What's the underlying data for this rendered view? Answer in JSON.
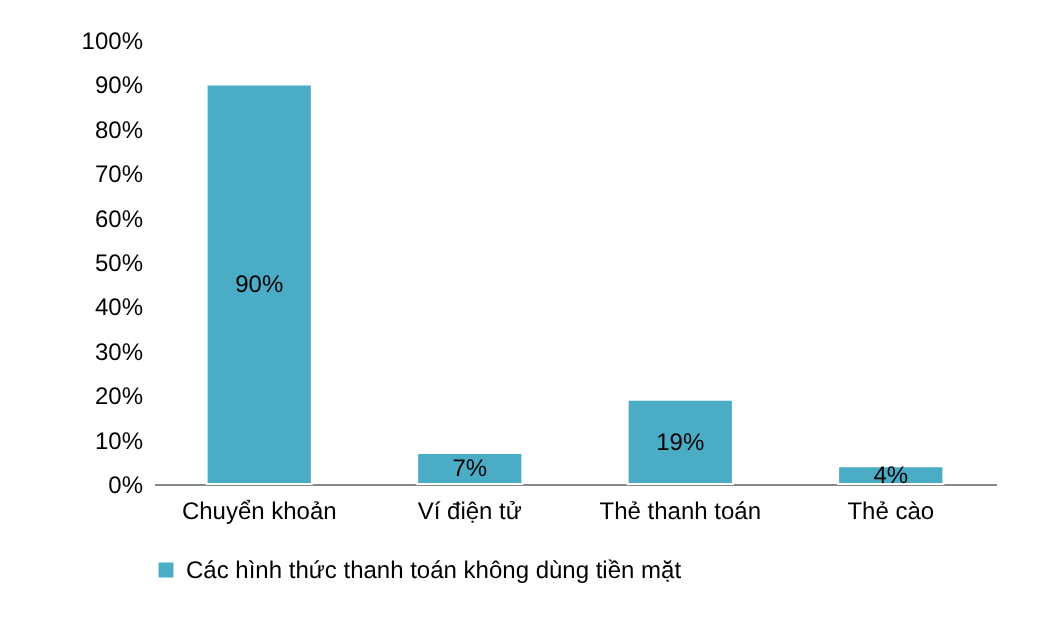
{
  "chart_data": {
    "type": "bar",
    "categories": [
      "Chuyển khoản",
      "Ví điện tử",
      "Thẻ thanh toán",
      "Thẻ cào"
    ],
    "series": [
      {
        "name": "Các hình thức thanh toán không dùng tiền mặt",
        "color": "#4bacc6",
        "values": [
          90,
          7,
          19,
          4
        ],
        "value_labels": [
          "90%",
          "7%",
          "19%",
          "4%"
        ]
      }
    ],
    "ylim": [
      0,
      100
    ],
    "yticks": [
      {
        "value": 0,
        "label": "0%"
      },
      {
        "value": 10,
        "label": "10%"
      },
      {
        "value": 20,
        "label": "20%"
      },
      {
        "value": 30,
        "label": "30%"
      },
      {
        "value": 40,
        "label": "40%"
      },
      {
        "value": 50,
        "label": "50%"
      },
      {
        "value": 60,
        "label": "60%"
      },
      {
        "value": 70,
        "label": "70%"
      },
      {
        "value": 80,
        "label": "80%"
      },
      {
        "value": 90,
        "label": "90%"
      },
      {
        "value": 100,
        "label": "100%"
      }
    ],
    "legend": "bottom",
    "grid": false
  }
}
